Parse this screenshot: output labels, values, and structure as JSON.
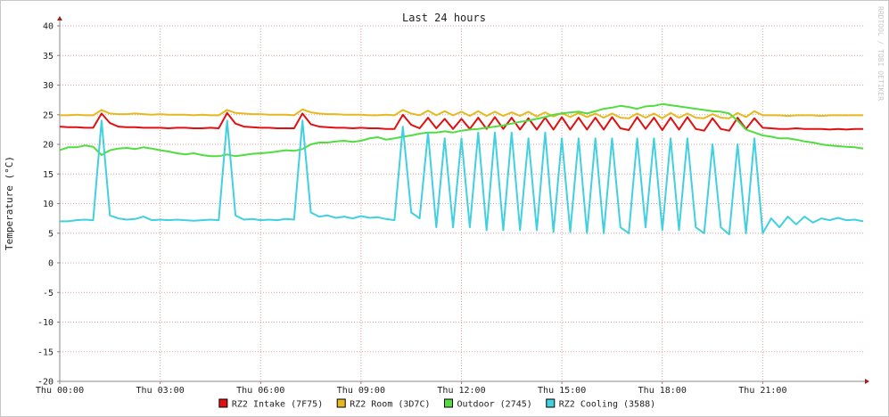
{
  "chart_data": {
    "type": "line",
    "title": "Last 24 hours",
    "y_label": "Temperature (°C)",
    "watermark": "RRDTOOL / TOBI OETIKER",
    "x": [
      0,
      0.25,
      0.5,
      0.75,
      1,
      1.25,
      1.5,
      1.75,
      2,
      2.25,
      2.5,
      2.75,
      3,
      3.25,
      3.5,
      3.75,
      4,
      4.25,
      4.5,
      4.75,
      5,
      5.25,
      5.5,
      5.75,
      6,
      6.25,
      6.5,
      6.75,
      7,
      7.25,
      7.5,
      7.75,
      8,
      8.25,
      8.5,
      8.75,
      9,
      9.25,
      9.5,
      9.75,
      10,
      10.25,
      10.5,
      10.75,
      11,
      11.25,
      11.5,
      11.75,
      12,
      12.25,
      12.5,
      12.75,
      13,
      13.25,
      13.5,
      13.75,
      14,
      14.25,
      14.5,
      14.75,
      15,
      15.25,
      15.5,
      15.75,
      16,
      16.25,
      16.5,
      16.75,
      17,
      17.25,
      17.5,
      17.75,
      18,
      18.25,
      18.5,
      18.75,
      19,
      19.25,
      19.5,
      19.75,
      20,
      20.25,
      20.5,
      20.75,
      21,
      21.25,
      21.5,
      21.75,
      22,
      22.25,
      22.5,
      22.75,
      23,
      23.25,
      23.5,
      23.75,
      24
    ],
    "xlim": [
      0,
      24
    ],
    "xticks": [
      {
        "value": 0,
        "label": "Thu 00:00"
      },
      {
        "value": 3,
        "label": "Thu 03:00"
      },
      {
        "value": 6,
        "label": "Thu 06:00"
      },
      {
        "value": 9,
        "label": "Thu 09:00"
      },
      {
        "value": 12,
        "label": "Thu 12:00"
      },
      {
        "value": 15,
        "label": "Thu 15:00"
      },
      {
        "value": 18,
        "label": "Thu 18:00"
      },
      {
        "value": 21,
        "label": "Thu 21:00"
      }
    ],
    "ylim": [
      -20,
      40
    ],
    "yticks": [
      -20,
      -15,
      -10,
      -5,
      0,
      5,
      10,
      15,
      20,
      25,
      30,
      35,
      40
    ],
    "grid": true,
    "legend": "bottom",
    "series": [
      {
        "name": "RZ2 Intake (7F75)",
        "color": "#e01010",
        "values": [
          23,
          22.9,
          22.9,
          22.8,
          22.8,
          25.2,
          23.6,
          23,
          22.9,
          22.9,
          22.8,
          22.8,
          22.8,
          22.7,
          22.8,
          22.8,
          22.7,
          22.7,
          22.8,
          22.7,
          25.3,
          23.5,
          23,
          22.9,
          22.8,
          22.8,
          22.7,
          22.7,
          22.7,
          25.2,
          23.4,
          23,
          22.9,
          22.8,
          22.8,
          22.7,
          22.8,
          22.7,
          22.7,
          22.6,
          22.6,
          25,
          23.3,
          22.7,
          24.5,
          22.7,
          24.3,
          22.6,
          24.3,
          22.6,
          24.5,
          22.6,
          24.6,
          22.6,
          24.5,
          22.5,
          24.4,
          22.5,
          24.5,
          22.5,
          24.6,
          22.5,
          24.5,
          22.5,
          24.5,
          22.5,
          24.6,
          22.7,
          22.4,
          24.6,
          22.6,
          24.5,
          22.4,
          24.5,
          22.5,
          24.6,
          22.6,
          22.3,
          24.4,
          22.6,
          22.3,
          24.5,
          22.6,
          24.4,
          22.8,
          22.7,
          22.6,
          22.6,
          22.7,
          22.6,
          22.6,
          22.6,
          22.5,
          22.6,
          22.5,
          22.6,
          22.6
        ]
      },
      {
        "name": "RZ2 Room (3D7C)",
        "color": "#e8b820",
        "values": [
          24.9,
          24.9,
          25,
          24.9,
          24.9,
          25.8,
          25.2,
          25.1,
          25.1,
          25.2,
          25.1,
          25,
          25.1,
          25,
          25,
          25,
          24.9,
          25,
          24.9,
          24.9,
          25.8,
          25.3,
          25.2,
          25.1,
          25.1,
          25,
          25,
          25,
          24.9,
          25.9,
          25.4,
          25.2,
          25.1,
          25.1,
          25,
          25,
          25,
          24.9,
          24.9,
          25,
          24.9,
          25.8,
          25.2,
          24.9,
          25.7,
          24.9,
          25.6,
          24.9,
          25.5,
          24.8,
          25.6,
          24.8,
          25.5,
          24.8,
          25.4,
          24.8,
          25.5,
          24.7,
          25.4,
          24.7,
          25.3,
          24.6,
          25.3,
          24.6,
          25.2,
          24.5,
          25.2,
          24.5,
          24.4,
          25.2,
          24.5,
          25.2,
          24.4,
          25.3,
          24.5,
          25.2,
          24.5,
          24.4,
          25.1,
          24.5,
          24.4,
          25.3,
          24.6,
          25.6,
          24.9,
          24.9,
          24.9,
          24.8,
          24.9,
          24.9,
          24.9,
          24.8,
          24.9,
          24.9,
          24.9,
          24.9,
          24.9
        ]
      },
      {
        "name": "Outdoor (2745)",
        "color": "#50dd40",
        "values": [
          19,
          19.5,
          19.5,
          19.8,
          19.6,
          18.2,
          19,
          19.3,
          19.4,
          19.2,
          19.5,
          19.3,
          19,
          18.8,
          18.5,
          18.3,
          18.5,
          18.2,
          18,
          18,
          18.3,
          18,
          18.2,
          18.4,
          18.5,
          18.6,
          18.8,
          19,
          18.9,
          19.2,
          20,
          20.3,
          20.3,
          20.5,
          20.6,
          20.4,
          20.6,
          21,
          21.2,
          20.8,
          21,
          21.3,
          21.5,
          21.8,
          22,
          22,
          22.2,
          22,
          22.3,
          22.5,
          22.6,
          22.8,
          23,
          23.2,
          23.5,
          23.8,
          24,
          24.3,
          24.6,
          25,
          25.2,
          25.4,
          25.5,
          25.2,
          25.6,
          26,
          26.2,
          26.5,
          26.3,
          26,
          26.4,
          26.5,
          26.8,
          26.6,
          26.4,
          26.2,
          26,
          25.8,
          25.6,
          25.5,
          25.2,
          24,
          22.5,
          22,
          21.5,
          21.3,
          21,
          21,
          20.8,
          20.5,
          20.3,
          20,
          19.8,
          19.7,
          19.6,
          19.5,
          19.3
        ]
      },
      {
        "name": "RZ2 Cooling (3588)",
        "color": "#40d0e0",
        "values": [
          7,
          7,
          7.2,
          7.3,
          7.2,
          24,
          8,
          7.5,
          7.3,
          7.4,
          7.8,
          7.2,
          7.3,
          7.2,
          7.3,
          7.2,
          7.1,
          7.2,
          7.3,
          7.2,
          24,
          8,
          7.3,
          7.4,
          7.2,
          7.3,
          7.2,
          7.4,
          7.3,
          24,
          8.5,
          7.8,
          8,
          7.6,
          7.8,
          7.5,
          7.9,
          7.6,
          7.7,
          7.4,
          7.2,
          23,
          8.5,
          7.5,
          22,
          6,
          21,
          6,
          21,
          6,
          22,
          5.5,
          22,
          5.5,
          22,
          5.5,
          21,
          5.5,
          22,
          5.2,
          21,
          5.2,
          21,
          5,
          21,
          5,
          21,
          6,
          5,
          21,
          6,
          21,
          5.5,
          21,
          5.5,
          21,
          6,
          5,
          20,
          6,
          4.8,
          20,
          5,
          21,
          5,
          7.5,
          6,
          7.8,
          6.5,
          7.8,
          6.8,
          7.5,
          7.2,
          7.6,
          7.2,
          7.3,
          7
        ]
      }
    ]
  }
}
